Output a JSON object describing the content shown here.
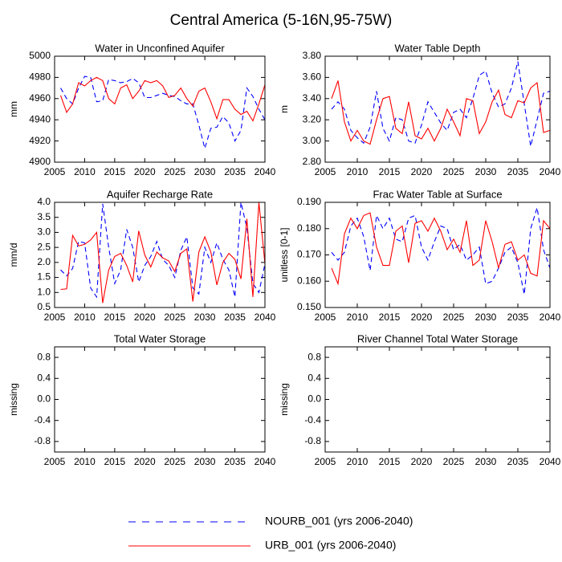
{
  "title": "Central America (5-16N,95-75W)",
  "legend": [
    {
      "name": "NOURB_001 (yrs 2006-2040)",
      "color": "#0000ff",
      "dash": true
    },
    {
      "name": "URB_001 (yrs 2006-2040)",
      "color": "#ff0000",
      "dash": false
    }
  ],
  "chart_data": [
    {
      "type": "line",
      "title": "Water in Unconfined Aquifer",
      "ylabel": "mm",
      "x": [
        2006,
        2007,
        2008,
        2009,
        2010,
        2011,
        2012,
        2013,
        2014,
        2015,
        2016,
        2017,
        2018,
        2019,
        2020,
        2021,
        2022,
        2023,
        2024,
        2025,
        2026,
        2027,
        2028,
        2029,
        2030,
        2031,
        2032,
        2033,
        2034,
        2035,
        2036,
        2037,
        2038,
        2039,
        2040
      ],
      "xlim": [
        2005,
        2040
      ],
      "xticks": [
        2005,
        2010,
        2015,
        2020,
        2025,
        2030,
        2035,
        2040
      ],
      "ylim": [
        4900,
        5000
      ],
      "yticks": [
        4900,
        4920,
        4940,
        4960,
        4980,
        5000
      ],
      "series": [
        {
          "values": [
            4970,
            4960,
            4955,
            4970,
            4981,
            4980,
            4957,
            4958,
            4978,
            4977,
            4975,
            4976,
            4979,
            4975,
            4961,
            4961,
            4963,
            4965,
            4963,
            4962,
            4958,
            4955,
            4955,
            4935,
            4913,
            4932,
            4933,
            4943,
            4937,
            4920,
            4930,
            4970,
            4962,
            4950,
            4940
          ]
        },
        {
          "values": [
            4963,
            4947,
            4955,
            4975,
            4972,
            4977,
            4980,
            4977,
            4960,
            4955,
            4970,
            4973,
            4960,
            4967,
            4977,
            4975,
            4977,
            4972,
            4961,
            4963,
            4970,
            4960,
            4953,
            4967,
            4970,
            4957,
            4941,
            4959,
            4959,
            4950,
            4945,
            4948,
            4939,
            4955,
            4973
          ]
        }
      ]
    },
    {
      "type": "line",
      "title": "Water Table Depth",
      "ylabel": "m",
      "x": [
        2006,
        2007,
        2008,
        2009,
        2010,
        2011,
        2012,
        2013,
        2014,
        2015,
        2016,
        2017,
        2018,
        2019,
        2020,
        2021,
        2022,
        2023,
        2024,
        2025,
        2026,
        2027,
        2028,
        2029,
        2030,
        2031,
        2032,
        2033,
        2034,
        2035,
        2036,
        2037,
        2038,
        2039,
        2040
      ],
      "xlim": [
        2005,
        2040
      ],
      "xticks": [
        2005,
        2010,
        2015,
        2020,
        2025,
        2030,
        2035,
        2040
      ],
      "ylim": [
        2.8,
        3.8
      ],
      "yticks": [
        {
          "value": 2.8,
          "label": "2.80"
        },
        {
          "value": 3.0,
          "label": "3.00"
        },
        {
          "value": 3.2,
          "label": "3.20"
        },
        {
          "value": 3.4,
          "label": "3.40"
        },
        {
          "value": 3.6,
          "label": "3.60"
        },
        {
          "value": 3.8,
          "label": "3.80"
        }
      ],
      "series": [
        {
          "values": [
            3.3,
            3.37,
            3.3,
            3.1,
            3.03,
            2.98,
            3.13,
            3.47,
            3.12,
            3.0,
            3.22,
            3.2,
            3.0,
            2.98,
            3.15,
            3.37,
            3.27,
            3.17,
            3.1,
            3.27,
            3.3,
            3.22,
            3.4,
            3.62,
            3.66,
            3.45,
            3.32,
            3.35,
            3.5,
            3.75,
            3.35,
            2.95,
            3.2,
            3.45,
            3.47
          ]
        },
        {
          "values": [
            3.4,
            3.57,
            3.18,
            3.0,
            3.1,
            3.0,
            2.97,
            3.2,
            3.4,
            3.42,
            3.12,
            3.07,
            3.37,
            3.05,
            3.02,
            3.12,
            3.0,
            3.12,
            3.3,
            3.18,
            3.05,
            3.4,
            3.38,
            3.07,
            3.18,
            3.37,
            3.48,
            3.25,
            3.22,
            3.38,
            3.36,
            3.5,
            3.55,
            3.08,
            3.1
          ]
        }
      ]
    },
    {
      "type": "line",
      "title": "Aquifer Recharge Rate",
      "ylabel": "mm/d",
      "x": [
        2006,
        2007,
        2008,
        2009,
        2010,
        2011,
        2012,
        2013,
        2014,
        2015,
        2016,
        2017,
        2018,
        2019,
        2020,
        2021,
        2022,
        2023,
        2024,
        2025,
        2026,
        2027,
        2028,
        2029,
        2030,
        2031,
        2032,
        2033,
        2034,
        2035,
        2036,
        2037,
        2038,
        2039,
        2040
      ],
      "xlim": [
        2005,
        2040
      ],
      "xticks": [
        2005,
        2010,
        2015,
        2020,
        2025,
        2030,
        2035,
        2040
      ],
      "ylim": [
        0.5,
        4.0
      ],
      "yticks": [
        0.5,
        {
          "value": 1.0,
          "label": "1.0"
        },
        1.5,
        {
          "value": 2.0,
          "label": "2.0"
        },
        2.5,
        {
          "value": 3.0,
          "label": "3.0"
        },
        3.5,
        {
          "value": 4.0,
          "label": "4.0"
        }
      ],
      "series": [
        {
          "values": [
            1.75,
            1.55,
            1.8,
            2.7,
            2.65,
            1.15,
            0.85,
            3.95,
            2.5,
            1.3,
            1.75,
            3.1,
            2.5,
            1.35,
            1.9,
            2.2,
            2.7,
            2.1,
            1.9,
            1.5,
            2.4,
            2.85,
            1.15,
            0.95,
            2.5,
            2.0,
            2.65,
            2.1,
            1.75,
            0.85,
            4.0,
            3.15,
            1.3,
            1.0,
            1.95
          ]
        },
        {
          "values": [
            1.1,
            1.12,
            2.9,
            2.55,
            2.6,
            2.75,
            3.0,
            0.65,
            1.75,
            2.2,
            2.3,
            1.9,
            1.35,
            3.05,
            2.25,
            1.85,
            2.35,
            2.15,
            2.05,
            1.7,
            2.3,
            2.45,
            0.7,
            2.35,
            2.85,
            2.35,
            1.25,
            2.0,
            2.3,
            2.1,
            1.45,
            3.45,
            0.85,
            4.0,
            1.95
          ]
        }
      ]
    },
    {
      "type": "line",
      "title": "Frac Water Table at Surface",
      "ylabel": "unitless [0-1]",
      "x": [
        2006,
        2007,
        2008,
        2009,
        2010,
        2011,
        2012,
        2013,
        2014,
        2015,
        2016,
        2017,
        2018,
        2019,
        2020,
        2021,
        2022,
        2023,
        2024,
        2025,
        2026,
        2027,
        2028,
        2029,
        2030,
        2031,
        2032,
        2033,
        2034,
        2035,
        2036,
        2037,
        2038,
        2039,
        2040
      ],
      "xlim": [
        2005,
        2040
      ],
      "xticks": [
        2005,
        2010,
        2015,
        2020,
        2025,
        2030,
        2035,
        2040
      ],
      "ylim": [
        0.15,
        0.19
      ],
      "yticks": [
        {
          "value": 0.15,
          "label": "0.150"
        },
        {
          "value": 0.16,
          "label": "0.160"
        },
        {
          "value": 0.17,
          "label": "0.170"
        },
        {
          "value": 0.18,
          "label": "0.180"
        },
        {
          "value": 0.19,
          "label": "0.190"
        }
      ],
      "series": [
        {
          "values": [
            0.171,
            0.168,
            0.171,
            0.181,
            0.184,
            0.177,
            0.164,
            0.185,
            0.18,
            0.184,
            0.176,
            0.175,
            0.184,
            0.185,
            0.173,
            0.168,
            0.175,
            0.181,
            0.18,
            0.172,
            0.174,
            0.168,
            0.17,
            0.173,
            0.159,
            0.16,
            0.165,
            0.171,
            0.173,
            0.167,
            0.155,
            0.18,
            0.188,
            0.172,
            0.165
          ]
        },
        {
          "values": [
            0.165,
            0.159,
            0.178,
            0.184,
            0.18,
            0.185,
            0.186,
            0.173,
            0.166,
            0.166,
            0.179,
            0.181,
            0.167,
            0.182,
            0.183,
            0.179,
            0.184,
            0.179,
            0.172,
            0.176,
            0.171,
            0.183,
            0.166,
            0.168,
            0.183,
            0.175,
            0.165,
            0.174,
            0.175,
            0.168,
            0.17,
            0.163,
            0.162,
            0.183,
            0.18
          ]
        }
      ]
    },
    {
      "type": "line",
      "title": "Total Water Storage",
      "ylabel": "missing",
      "xlim": [
        2005,
        2040
      ],
      "xticks": [
        2005,
        2010,
        2015,
        2020,
        2025,
        2030,
        2035,
        2040
      ],
      "ylim": [
        -1,
        1
      ],
      "yticks": [
        -0.8,
        -0.4,
        {
          "value": 0,
          "label": "0.0"
        },
        0.4,
        0.8
      ],
      "series": []
    },
    {
      "type": "line",
      "title": "River Channel Total Water Storage",
      "ylabel": "missing",
      "xlim": [
        2005,
        2040
      ],
      "xticks": [
        2005,
        2010,
        2015,
        2020,
        2025,
        2030,
        2035,
        2040
      ],
      "ylim": [
        -1,
        1
      ],
      "yticks": [
        -0.8,
        -0.4,
        {
          "value": 0,
          "label": "0.0"
        },
        0.4,
        0.8
      ],
      "series": []
    }
  ]
}
